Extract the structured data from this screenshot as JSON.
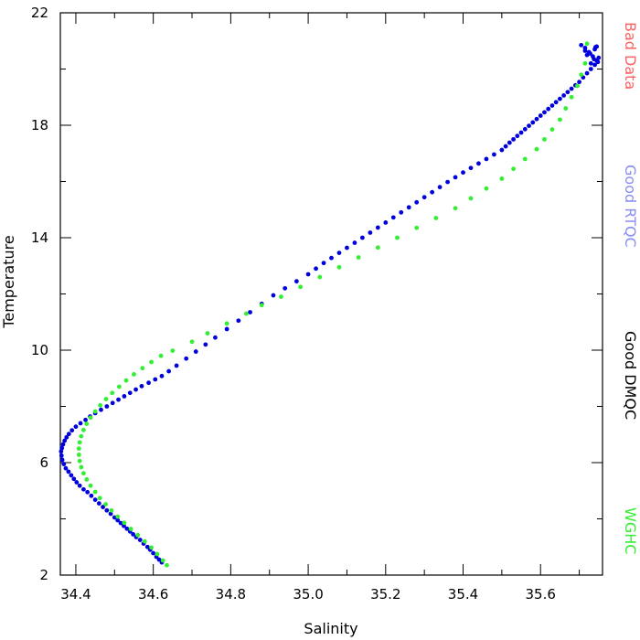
{
  "chart_data": {
    "type": "scatter",
    "xlabel": "Salinity",
    "ylabel": "Temperature",
    "xlim": [
      34.36,
      35.76
    ],
    "ylim": [
      2,
      22
    ],
    "xticks": [
      34.4,
      34.6,
      34.8,
      35.0,
      35.2,
      35.4,
      35.6
    ],
    "xtick_labels": [
      "34.4",
      "34.6",
      "34.8",
      "35.0",
      "35.2",
      "35.4",
      "35.6"
    ],
    "yticks": [
      2,
      6,
      10,
      14,
      18,
      22
    ],
    "ytick_labels": [
      "2",
      "6",
      "10",
      "14",
      "18",
      "22"
    ],
    "grid": false,
    "legend_position": "right",
    "legend": [
      {
        "label": "Bad Data",
        "color": "#ff6060"
      },
      {
        "label": "Good RTQC",
        "color": "#8a8ef0"
      },
      {
        "label": "Good DMQC",
        "color": "#000000"
      },
      {
        "label": "WGHC",
        "color": "#33ee33"
      }
    ],
    "series": [
      {
        "name": "Good RTQC",
        "color": "#0000dd",
        "x": [
          34.622,
          34.615,
          34.608,
          34.6,
          34.592,
          34.585,
          34.575,
          34.566,
          34.556,
          34.548,
          34.54,
          34.532,
          34.524,
          34.516,
          34.508,
          34.5,
          34.49,
          34.48,
          34.47,
          34.46,
          34.45,
          34.44,
          34.43,
          34.42,
          34.41,
          34.402,
          34.395,
          34.388,
          34.381,
          34.374,
          34.369,
          34.365,
          34.363,
          34.362,
          34.364,
          34.367,
          34.371,
          34.376,
          34.382,
          34.39,
          34.4,
          34.412,
          34.425,
          34.437,
          34.45,
          34.465,
          34.48,
          34.495,
          34.51,
          34.525,
          34.54,
          34.555,
          34.57,
          34.588,
          34.605,
          34.622,
          34.64,
          34.66,
          34.685,
          34.71,
          34.735,
          34.76,
          34.79,
          34.82,
          34.85,
          34.88,
          34.91,
          34.94,
          34.97,
          35.0,
          35.02,
          35.04,
          35.06,
          35.08,
          35.1,
          35.12,
          35.14,
          35.16,
          35.18,
          35.2,
          35.22,
          35.24,
          35.26,
          35.28,
          35.3,
          35.32,
          35.34,
          35.36,
          35.38,
          35.4,
          35.42,
          35.44,
          35.46,
          35.48,
          35.5,
          35.51,
          35.52,
          35.53,
          35.54,
          35.55,
          35.56,
          35.57,
          35.58,
          35.59,
          35.6,
          35.61,
          35.62,
          35.63,
          35.64,
          35.65,
          35.66,
          35.67,
          35.68,
          35.69,
          35.7,
          35.71,
          35.72,
          35.73,
          35.74,
          35.745,
          35.735,
          35.725,
          35.715,
          35.705,
          35.72,
          35.74,
          35.75,
          35.73,
          35.745,
          35.715,
          35.738,
          35.728,
          35.748,
          35.742
        ],
        "y": [
          2.45,
          2.55,
          2.65,
          2.78,
          2.9,
          3.0,
          3.12,
          3.25,
          3.35,
          3.45,
          3.55,
          3.65,
          3.75,
          3.85,
          3.95,
          4.05,
          4.18,
          4.3,
          4.42,
          4.55,
          4.68,
          4.82,
          4.95,
          5.05,
          5.18,
          5.3,
          5.42,
          5.55,
          5.68,
          5.8,
          5.95,
          6.1,
          6.25,
          6.4,
          6.52,
          6.65,
          6.78,
          6.9,
          7.02,
          7.15,
          7.28,
          7.4,
          7.52,
          7.64,
          7.76,
          7.88,
          8.0,
          8.12,
          8.24,
          8.36,
          8.48,
          8.6,
          8.72,
          8.84,
          8.96,
          9.08,
          9.25,
          9.45,
          9.7,
          9.95,
          10.2,
          10.45,
          10.75,
          11.05,
          11.35,
          11.65,
          11.95,
          12.2,
          12.45,
          12.7,
          12.9,
          13.1,
          13.28,
          13.46,
          13.64,
          13.82,
          14.0,
          14.18,
          14.36,
          14.54,
          14.72,
          14.9,
          15.08,
          15.26,
          15.44,
          15.62,
          15.8,
          15.98,
          16.15,
          16.32,
          16.48,
          16.64,
          16.8,
          16.96,
          17.12,
          17.25,
          17.38,
          17.5,
          17.62,
          17.74,
          17.86,
          17.98,
          18.1,
          18.22,
          18.34,
          18.46,
          18.58,
          18.7,
          18.82,
          18.94,
          19.06,
          19.18,
          19.3,
          19.42,
          19.54,
          19.7,
          19.85,
          20.0,
          20.15,
          20.3,
          20.45,
          20.6,
          20.75,
          20.85,
          20.5,
          20.7,
          20.4,
          20.2,
          20.8,
          20.65,
          20.35,
          20.55,
          20.25,
          20.78
        ]
      },
      {
        "name": "WGHC",
        "color": "#33ee33",
        "x": [
          34.635,
          34.625,
          34.61,
          34.595,
          34.578,
          34.56,
          34.542,
          34.525,
          34.508,
          34.492,
          34.477,
          34.462,
          34.45,
          34.438,
          34.428,
          34.42,
          34.414,
          34.41,
          34.408,
          34.408,
          34.41,
          34.414,
          34.42,
          34.428,
          34.438,
          34.45,
          34.463,
          34.478,
          34.494,
          34.512,
          34.53,
          34.55,
          34.572,
          34.595,
          34.62,
          34.65,
          34.7,
          34.74,
          34.79,
          34.84,
          34.88,
          34.93,
          34.98,
          35.03,
          35.08,
          35.13,
          35.18,
          35.23,
          35.28,
          35.33,
          35.38,
          35.42,
          35.46,
          35.5,
          35.53,
          35.56,
          35.59,
          35.61,
          35.63,
          35.65,
          35.665,
          35.68,
          35.695,
          35.705,
          35.715,
          35.72
        ],
        "y": [
          2.35,
          2.52,
          2.75,
          2.98,
          3.2,
          3.42,
          3.64,
          3.86,
          4.08,
          4.3,
          4.52,
          4.74,
          4.96,
          5.18,
          5.4,
          5.62,
          5.84,
          6.06,
          6.28,
          6.5,
          6.72,
          6.94,
          7.16,
          7.38,
          7.6,
          7.82,
          8.04,
          8.26,
          8.48,
          8.7,
          8.92,
          9.14,
          9.36,
          9.58,
          9.8,
          9.98,
          10.3,
          10.6,
          10.95,
          11.3,
          11.6,
          11.9,
          12.25,
          12.6,
          12.95,
          13.3,
          13.65,
          14.0,
          14.35,
          14.7,
          15.05,
          15.4,
          15.75,
          16.1,
          16.45,
          16.8,
          17.15,
          17.5,
          17.85,
          18.2,
          18.6,
          19.0,
          19.4,
          19.8,
          20.2,
          20.9
        ]
      }
    ]
  }
}
